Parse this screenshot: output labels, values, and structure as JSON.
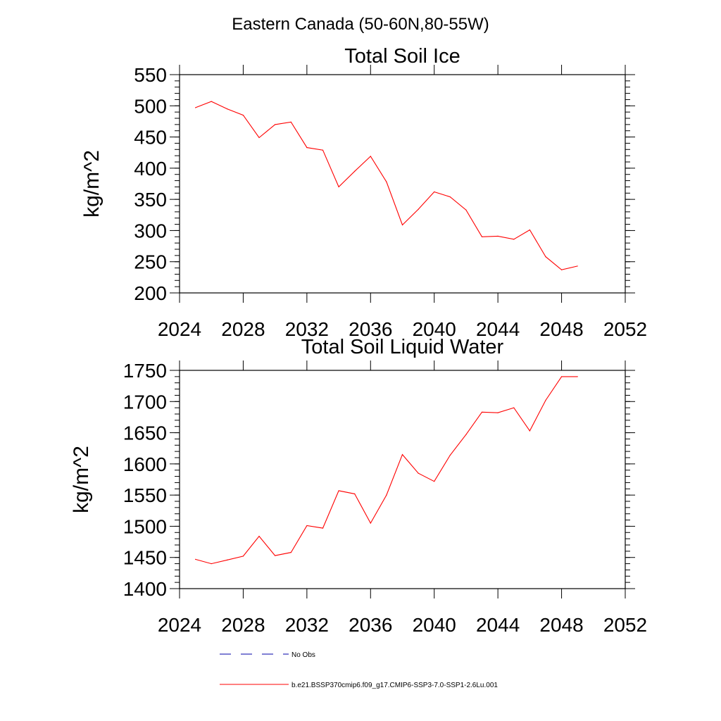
{
  "figure": {
    "title": "Eastern Canada (50-60N,80-55W)"
  },
  "legend": {
    "obs_label": "No Obs",
    "model_label": "b.e21.BSSP370cmip6.f09_g17.CMIP6-SSP3-7.0-SSP1-2.6Lu.001"
  },
  "colors": {
    "series": "#ff0000",
    "obs": "#0000aa",
    "axis": "#000000"
  },
  "chart_data": [
    {
      "type": "line",
      "title": "Total Soil Ice",
      "xlabel": "",
      "ylabel": "kg/m^2",
      "xlim": [
        2024,
        2052
      ],
      "ylim": [
        200,
        550
      ],
      "xticks": [
        2024,
        2028,
        2032,
        2036,
        2040,
        2044,
        2048,
        2052
      ],
      "xtick_labels": [
        "2024",
        "2028",
        "2032",
        "2036",
        "2040",
        "2044",
        "2048",
        "2052"
      ],
      "yticks": [
        200,
        250,
        300,
        350,
        400,
        450,
        500,
        550
      ],
      "ytick_labels": [
        "200",
        "250",
        "300",
        "350",
        "400",
        "450",
        "500",
        "550"
      ],
      "grid": false,
      "series": [
        {
          "name": "b.e21.BSSP370cmip6.f09_g17.CMIP6-SSP3-7.0-SSP1-2.6Lu.001",
          "x": [
            2025,
            2026,
            2027,
            2028,
            2029,
            2030,
            2031,
            2032,
            2033,
            2034,
            2035,
            2036,
            2037,
            2038,
            2039,
            2040,
            2041,
            2042,
            2043,
            2044,
            2045,
            2046,
            2047,
            2048,
            2049
          ],
          "y": [
            497,
            507,
            495,
            485,
            449,
            470,
            474,
            433,
            429,
            370,
            395,
            419,
            378,
            309,
            334,
            362,
            354,
            333,
            290,
            291,
            286,
            301,
            258,
            237,
            243
          ]
        }
      ]
    },
    {
      "type": "line",
      "title": "Total Soil Liquid Water",
      "xlabel": "",
      "ylabel": "kg/m^2",
      "xlim": [
        2024,
        2052
      ],
      "ylim": [
        1400,
        1750
      ],
      "xticks": [
        2024,
        2028,
        2032,
        2036,
        2040,
        2044,
        2048,
        2052
      ],
      "xtick_labels": [
        "2024",
        "2028",
        "2032",
        "2036",
        "2040",
        "2044",
        "2048",
        "2052"
      ],
      "yticks": [
        1400,
        1450,
        1500,
        1550,
        1600,
        1650,
        1700,
        1750
      ],
      "ytick_labels": [
        "1400",
        "1450",
        "1500",
        "1550",
        "1600",
        "1650",
        "1700",
        "1750"
      ],
      "grid": false,
      "series": [
        {
          "name": "b.e21.BSSP370cmip6.f09_g17.CMIP6-SSP3-7.0-SSP1-2.6Lu.001",
          "x": [
            2025,
            2026,
            2027,
            2028,
            2029,
            2030,
            2031,
            2032,
            2033,
            2034,
            2035,
            2036,
            2037,
            2038,
            2039,
            2040,
            2041,
            2042,
            2043,
            2044,
            2045,
            2046,
            2047,
            2048,
            2049
          ],
          "y": [
            1447,
            1440,
            1446,
            1452,
            1484,
            1453,
            1458,
            1501,
            1497,
            1557,
            1552,
            1505,
            1550,
            1615,
            1585,
            1572,
            1614,
            1647,
            1683,
            1682,
            1690,
            1653,
            1702,
            1740,
            1740
          ]
        }
      ]
    }
  ]
}
